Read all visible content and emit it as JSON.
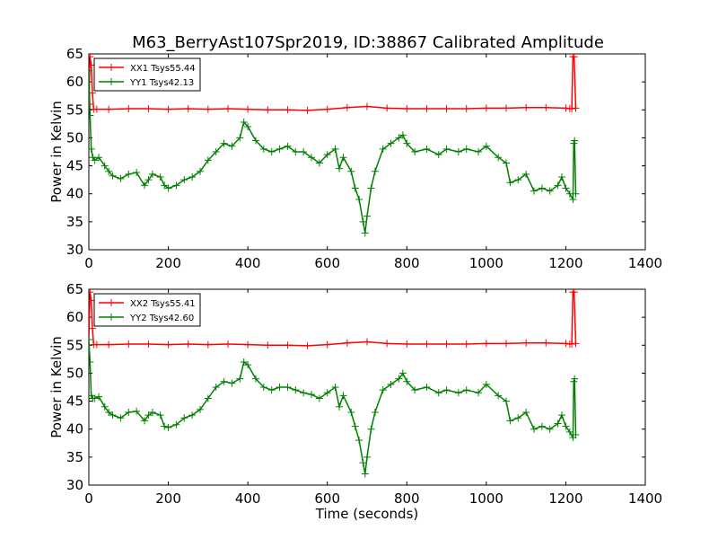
{
  "chart_data": [
    {
      "type": "line",
      "title": "M63_BerryAst107Spr2019, ID:38867 Calibrated Amplitude",
      "xlabel": "",
      "ylabel": "Power in Kelvin",
      "xlim": [
        0,
        1400
      ],
      "ylim": [
        30,
        65
      ],
      "x_ticks": [
        "0",
        "200",
        "400",
        "600",
        "800",
        "1000",
        "1200",
        "1400"
      ],
      "y_ticks": [
        "30",
        "35",
        "40",
        "45",
        "50",
        "55",
        "60",
        "65"
      ],
      "grid": false,
      "legend_position": "top-left",
      "series": [
        {
          "name": "XX1 Tsys55.44",
          "color": "#ff0000",
          "marker": "+",
          "x": [
            0,
            3,
            6,
            9,
            12,
            20,
            50,
            100,
            150,
            200,
            250,
            300,
            350,
            400,
            450,
            500,
            550,
            600,
            650,
            700,
            750,
            800,
            850,
            900,
            950,
            1000,
            1050,
            1100,
            1150,
            1200,
            1210,
            1215,
            1218,
            1221,
            1225
          ],
          "values": [
            56,
            64.5,
            63,
            58,
            55.1,
            55.1,
            55.1,
            55.2,
            55.2,
            55.1,
            55.2,
            55.1,
            55.2,
            55.1,
            55.0,
            55.0,
            54.9,
            55.1,
            55.4,
            55.6,
            55.3,
            55.2,
            55.2,
            55.2,
            55.2,
            55.3,
            55.3,
            55.4,
            55.4,
            55.3,
            55.2,
            55.2,
            64.5,
            64.5,
            55.3
          ]
        },
        {
          "name": "YY1 Tsys42.13",
          "color": "#008000",
          "marker": "+",
          "x": [
            0,
            3,
            6,
            10,
            15,
            25,
            40,
            50,
            60,
            80,
            100,
            120,
            140,
            150,
            160,
            180,
            190,
            200,
            220,
            240,
            260,
            280,
            300,
            320,
            340,
            360,
            380,
            390,
            400,
            420,
            440,
            460,
            480,
            500,
            520,
            540,
            560,
            580,
            600,
            620,
            630,
            640,
            660,
            670,
            680,
            690,
            695,
            700,
            710,
            720,
            740,
            760,
            780,
            790,
            800,
            820,
            850,
            880,
            900,
            930,
            950,
            980,
            1000,
            1030,
            1050,
            1060,
            1080,
            1100,
            1120,
            1140,
            1160,
            1180,
            1190,
            1200,
            1210,
            1218,
            1220,
            1222,
            1225
          ],
          "values": [
            62,
            54,
            48,
            46.5,
            46,
            46.5,
            45,
            44,
            43.2,
            42.7,
            43.5,
            43.8,
            41.5,
            42.5,
            43.5,
            43,
            41.5,
            41,
            41.5,
            42.5,
            43,
            44,
            46,
            47.5,
            49,
            48.5,
            50,
            52.8,
            52,
            49.5,
            48,
            47.5,
            48,
            48.5,
            47.5,
            47.5,
            46.5,
            45.5,
            47,
            48,
            44.5,
            46.5,
            44,
            41,
            39,
            35,
            33,
            36,
            41,
            44,
            48,
            49,
            50,
            50.5,
            49,
            47.5,
            48,
            47,
            48,
            47.5,
            48,
            47.5,
            48.5,
            46.5,
            45.5,
            42,
            42.5,
            43.5,
            40.5,
            41,
            40.5,
            41.5,
            43,
            41,
            40,
            39,
            49,
            49.5,
            40
          ]
        }
      ]
    },
    {
      "type": "line",
      "title": "",
      "xlabel": "Time (seconds)",
      "ylabel": "Power in Kelvin",
      "xlim": [
        0,
        1400
      ],
      "ylim": [
        30,
        65
      ],
      "x_ticks": [
        "0",
        "200",
        "400",
        "600",
        "800",
        "1000",
        "1200",
        "1400"
      ],
      "y_ticks": [
        "30",
        "35",
        "40",
        "45",
        "50",
        "55",
        "60",
        "65"
      ],
      "grid": false,
      "legend_position": "top-left",
      "series": [
        {
          "name": "XX2 Tsys55.41",
          "color": "#ff0000",
          "marker": "+",
          "x": [
            0,
            3,
            6,
            9,
            12,
            20,
            50,
            100,
            150,
            200,
            250,
            300,
            350,
            400,
            450,
            500,
            550,
            600,
            650,
            700,
            750,
            800,
            850,
            900,
            950,
            1000,
            1050,
            1100,
            1150,
            1200,
            1210,
            1215,
            1218,
            1221,
            1225
          ],
          "values": [
            56,
            64.5,
            63,
            58,
            55.1,
            55.1,
            55.1,
            55.2,
            55.2,
            55.1,
            55.2,
            55.1,
            55.2,
            55.1,
            55.0,
            55.0,
            54.9,
            55.1,
            55.4,
            55.6,
            55.3,
            55.2,
            55.2,
            55.2,
            55.2,
            55.3,
            55.3,
            55.4,
            55.4,
            55.3,
            55.2,
            55.2,
            64.5,
            64.5,
            55.3
          ]
        },
        {
          "name": "YY2 Tsys42.60",
          "color": "#008000",
          "marker": "+",
          "x": [
            0,
            3,
            6,
            10,
            15,
            25,
            40,
            50,
            60,
            80,
            100,
            120,
            140,
            150,
            160,
            180,
            190,
            200,
            220,
            240,
            260,
            280,
            300,
            320,
            340,
            360,
            380,
            390,
            400,
            420,
            440,
            460,
            480,
            500,
            520,
            540,
            560,
            580,
            600,
            620,
            630,
            640,
            660,
            670,
            680,
            690,
            695,
            700,
            710,
            720,
            740,
            760,
            780,
            790,
            800,
            820,
            850,
            880,
            900,
            930,
            950,
            980,
            1000,
            1030,
            1050,
            1060,
            1080,
            1100,
            1120,
            1140,
            1160,
            1180,
            1190,
            1200,
            1210,
            1218,
            1220,
            1222,
            1225
          ],
          "values": [
            56,
            52,
            46,
            45.5,
            45.5,
            45.8,
            44,
            43,
            42.5,
            42,
            43,
            43.2,
            41.5,
            42.5,
            43,
            42.5,
            40.5,
            40.3,
            40.8,
            42,
            42.5,
            43.5,
            45.5,
            47.5,
            48.5,
            48.2,
            49,
            52,
            51.5,
            49,
            47.5,
            47,
            47.5,
            47.5,
            47,
            46.5,
            46.2,
            45.5,
            46.5,
            47.5,
            44,
            46,
            43,
            40.5,
            38,
            34,
            32,
            35,
            40,
            43,
            47,
            48,
            49,
            50,
            48.5,
            47,
            47.5,
            46.5,
            47,
            46.5,
            47,
            46.5,
            48,
            46,
            45,
            41.5,
            42,
            43,
            40,
            40.5,
            40,
            41,
            42.5,
            40.5,
            39.5,
            38.5,
            48.5,
            49,
            39
          ]
        }
      ]
    }
  ]
}
